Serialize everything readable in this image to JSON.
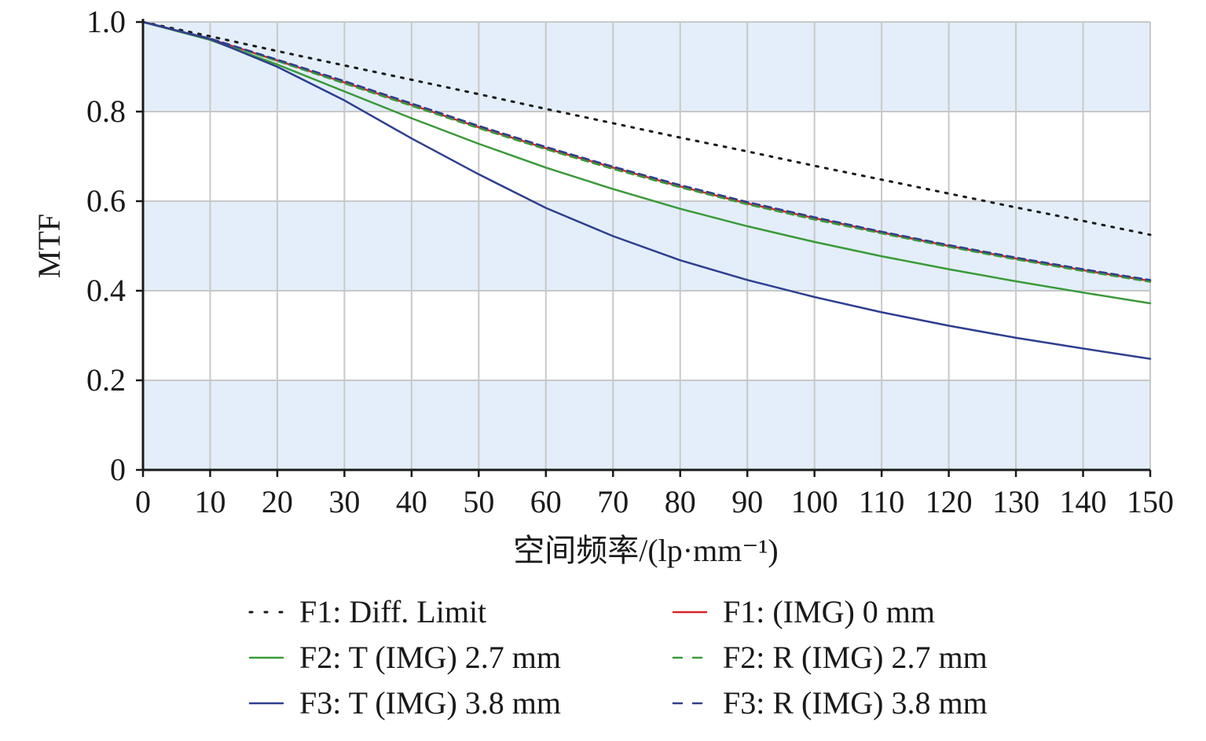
{
  "chart_data": {
    "type": "line",
    "title": "",
    "xlabel": "空间频率/(lp·mm⁻¹)",
    "ylabel": "MTF",
    "xlim": [
      0,
      150
    ],
    "ylim": [
      0,
      1.0
    ],
    "xticks": [
      0,
      10,
      20,
      30,
      40,
      50,
      60,
      70,
      80,
      90,
      100,
      110,
      120,
      130,
      140,
      150
    ],
    "xtick_labels": [
      "0",
      "10",
      "20",
      "30",
      "40",
      "50",
      "60",
      "70",
      "80",
      "90",
      "100",
      "110",
      "120",
      "130",
      "140",
      "150"
    ],
    "yticks": [
      0,
      0.2,
      0.4,
      0.6,
      0.8,
      1.0
    ],
    "ytick_labels": [
      "0",
      "0.2",
      "0.4",
      "0.6",
      "0.8",
      "1.0"
    ],
    "grid": true,
    "background_bands": "alternating light blue",
    "legend_position": "bottom",
    "x": [
      0,
      10,
      20,
      30,
      40,
      50,
      60,
      70,
      80,
      90,
      100,
      110,
      120,
      130,
      140,
      150
    ],
    "series": [
      {
        "name": "F1: Diff. Limit",
        "color": "#1a1a1a",
        "style": "dotted",
        "values": [
          1.0,
          0.968,
          0.935,
          0.903,
          0.871,
          0.839,
          0.806,
          0.774,
          0.742,
          0.711,
          0.679,
          0.648,
          0.617,
          0.586,
          0.556,
          0.525
        ]
      },
      {
        "name": "F1: (IMG) 0 mm",
        "color": "#d62728",
        "style": "solid",
        "values": [
          1.0,
          0.962,
          0.914,
          0.865,
          0.815,
          0.765,
          0.718,
          0.675,
          0.633,
          0.595,
          0.562,
          0.53,
          0.5,
          0.472,
          0.446,
          0.422
        ]
      },
      {
        "name": "F2: T (IMG) 2.7 mm",
        "color": "#3a9a3a",
        "style": "solid",
        "values": [
          1.0,
          0.96,
          0.905,
          0.845,
          0.785,
          0.728,
          0.675,
          0.627,
          0.583,
          0.544,
          0.509,
          0.477,
          0.448,
          0.421,
          0.396,
          0.372
        ]
      },
      {
        "name": "F2: R (IMG) 2.7 mm",
        "color": "#3a9a3a",
        "style": "dashed",
        "values": [
          1.0,
          0.962,
          0.913,
          0.863,
          0.813,
          0.763,
          0.716,
          0.672,
          0.631,
          0.593,
          0.559,
          0.528,
          0.498,
          0.47,
          0.444,
          0.42
        ]
      },
      {
        "name": "F3: T (IMG) 3.8 mm",
        "color": "#2e3f8f",
        "style": "solid",
        "values": [
          1.0,
          0.962,
          0.9,
          0.825,
          0.74,
          0.66,
          0.585,
          0.522,
          0.468,
          0.424,
          0.386,
          0.352,
          0.322,
          0.295,
          0.271,
          0.248
        ]
      },
      {
        "name": "F3: R (IMG) 3.8 mm",
        "color": "#2e3f8f",
        "style": "dashed",
        "values": [
          1.0,
          0.963,
          0.916,
          0.868,
          0.818,
          0.768,
          0.721,
          0.677,
          0.636,
          0.598,
          0.564,
          0.532,
          0.502,
          0.474,
          0.448,
          0.424
        ]
      }
    ]
  },
  "colors": {
    "band": "#e3eefa",
    "grid": "#c8c8c8",
    "axis": "#1a1a1a"
  }
}
